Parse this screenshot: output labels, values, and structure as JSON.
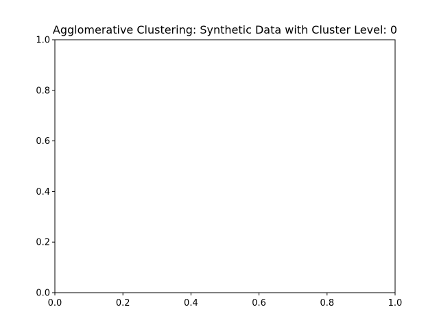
{
  "chart_data": {
    "type": "scatter",
    "title": "Agglomerative Clustering: Synthetic Data with Cluster Level: 0",
    "xlabel": "",
    "ylabel": "",
    "xlim": [
      0.0,
      1.0
    ],
    "ylim": [
      0.0,
      1.0
    ],
    "x_ticks": [
      "0.0",
      "0.2",
      "0.4",
      "0.6",
      "0.8",
      "1.0"
    ],
    "y_ticks": [
      "0.0",
      "0.2",
      "0.4",
      "0.6",
      "0.8",
      "1.0"
    ],
    "series": [],
    "grid": false,
    "legend": false
  }
}
